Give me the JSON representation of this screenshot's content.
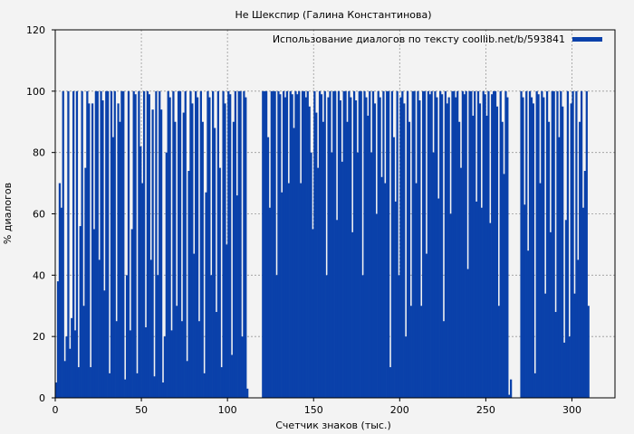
{
  "chart_data": {
    "type": "area",
    "title": "Не Шекспир (Галина Константинова)",
    "xlabel": "Счетчик знаков (тыс.)",
    "ylabel": "% диалогов",
    "xlim": [
      0,
      325
    ],
    "ylim": [
      0,
      120
    ],
    "xticks": [
      0,
      50,
      100,
      150,
      200,
      250,
      300
    ],
    "yticks": [
      0,
      20,
      40,
      60,
      80,
      100,
      120
    ],
    "grid": true,
    "legend_position": "top-right",
    "series": [
      {
        "name": "Использование диалогов по тексту coollib.net/b/593841",
        "color": "#0a41aa",
        "x_step": 1,
        "values": [
          5,
          38,
          70,
          62,
          100,
          12,
          20,
          100,
          16,
          26,
          100,
          22,
          100,
          10,
          56,
          100,
          30,
          75,
          100,
          96,
          10,
          96,
          55,
          100,
          100,
          45,
          100,
          97,
          35,
          100,
          100,
          8,
          100,
          85,
          100,
          25,
          96,
          90,
          100,
          100,
          6,
          40,
          100,
          22,
          55,
          100,
          99,
          8,
          100,
          82,
          70,
          100,
          23,
          100,
          99,
          45,
          94,
          7,
          100,
          40,
          100,
          94,
          5,
          20,
          80,
          100,
          98,
          22,
          100,
          90,
          30,
          100,
          100,
          25,
          93,
          100,
          12,
          74,
          100,
          96,
          47,
          100,
          98,
          25,
          100,
          90,
          8,
          67,
          100,
          98,
          40,
          100,
          88,
          28,
          100,
          75,
          10,
          100,
          96,
          50,
          100,
          99,
          14,
          90,
          100,
          66,
          100,
          100,
          20,
          100,
          98,
          3,
          0,
          0,
          0,
          0,
          0,
          0,
          0,
          0,
          100,
          100,
          100,
          85,
          62,
          100,
          100,
          100,
          40,
          100,
          99,
          67,
          100,
          98,
          100,
          70,
          100,
          99,
          88,
          100,
          99,
          100,
          70,
          100,
          100,
          98,
          100,
          95,
          80,
          55,
          100,
          93,
          75,
          100,
          99,
          90,
          100,
          40,
          98,
          100,
          80,
          100,
          100,
          58,
          100,
          97,
          77,
          100,
          100,
          90,
          100,
          98,
          54,
          100,
          97,
          80,
          100,
          100,
          40,
          100,
          98,
          92,
          100,
          80,
          100,
          96,
          60,
          100,
          98,
          72,
          100,
          70,
          100,
          100,
          10,
          100,
          85,
          64,
          100,
          40,
          98,
          100,
          96,
          20,
          100,
          90,
          30,
          100,
          100,
          70,
          100,
          97,
          30,
          100,
          100,
          47,
          100,
          99,
          100,
          80,
          100,
          98,
          65,
          100,
          99,
          25,
          100,
          96,
          98,
          60,
          100,
          100,
          98,
          100,
          90,
          75,
          100,
          99,
          100,
          42,
          100,
          100,
          92,
          100,
          64,
          100,
          96,
          62,
          100,
          99,
          92,
          100,
          57,
          99,
          100,
          100,
          95,
          30,
          100,
          90,
          73,
          100,
          98,
          1,
          6,
          0,
          0,
          0,
          0,
          0,
          100,
          98,
          63,
          100,
          48,
          100,
          98,
          96,
          8,
          100,
          99,
          70,
          100,
          98,
          34,
          100,
          90,
          54,
          100,
          100,
          28,
          100,
          85,
          100,
          95,
          18,
          58,
          100,
          20,
          96,
          100,
          34,
          100,
          45,
          90,
          100,
          62,
          74,
          100,
          30
        ]
      }
    ]
  }
}
